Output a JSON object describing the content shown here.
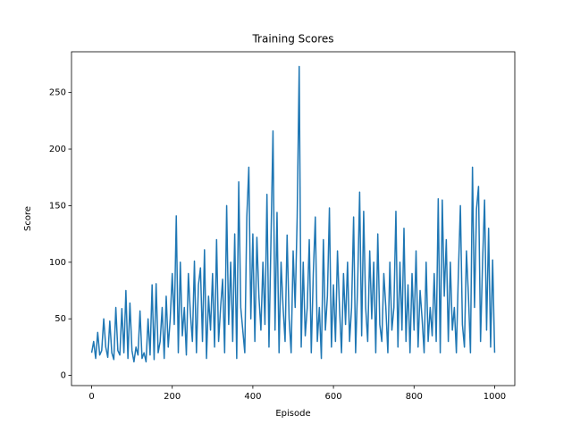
{
  "chart_data": {
    "type": "line",
    "title": "Training Scores",
    "x_label": "Episode",
    "y_label": "Score",
    "xlim": [
      -50,
      1050
    ],
    "ylim": [
      -9,
      286
    ],
    "xticks": [
      0,
      200,
      400,
      600,
      800,
      1000
    ],
    "yticks": [
      0,
      50,
      100,
      150,
      200,
      250
    ],
    "x": [
      0,
      5,
      10,
      15,
      20,
      25,
      30,
      35,
      40,
      45,
      50,
      55,
      60,
      65,
      70,
      75,
      80,
      85,
      90,
      95,
      100,
      105,
      110,
      115,
      120,
      125,
      130,
      135,
      140,
      145,
      150,
      155,
      160,
      165,
      170,
      175,
      180,
      185,
      190,
      195,
      200,
      205,
      210,
      215,
      220,
      225,
      230,
      235,
      240,
      245,
      250,
      255,
      260,
      265,
      270,
      275,
      280,
      285,
      290,
      295,
      300,
      305,
      310,
      315,
      320,
      325,
      330,
      335,
      340,
      345,
      350,
      355,
      360,
      365,
      370,
      375,
      380,
      385,
      390,
      395,
      400,
      405,
      410,
      415,
      420,
      425,
      430,
      435,
      440,
      445,
      450,
      455,
      460,
      465,
      470,
      475,
      480,
      485,
      490,
      495,
      500,
      505,
      510,
      515,
      520,
      525,
      530,
      535,
      540,
      545,
      550,
      555,
      560,
      565,
      570,
      575,
      580,
      585,
      590,
      595,
      600,
      605,
      610,
      615,
      620,
      625,
      630,
      635,
      640,
      645,
      650,
      655,
      660,
      665,
      670,
      675,
      680,
      685,
      690,
      695,
      700,
      705,
      710,
      715,
      720,
      725,
      730,
      735,
      740,
      745,
      750,
      755,
      760,
      765,
      770,
      775,
      780,
      785,
      790,
      795,
      800,
      805,
      810,
      815,
      820,
      825,
      830,
      835,
      840,
      845,
      850,
      855,
      860,
      865,
      870,
      875,
      880,
      885,
      890,
      895,
      900,
      905,
      910,
      915,
      920,
      925,
      930,
      935,
      940,
      945,
      950,
      955,
      960,
      965,
      970,
      975,
      980,
      985,
      990,
      995,
      1000
    ],
    "series": [
      {
        "color": "#1f77b4",
        "values": [
          20,
          30,
          15,
          38,
          18,
          22,
          50,
          25,
          16,
          48,
          20,
          14,
          60,
          22,
          18,
          59,
          20,
          75,
          15,
          64,
          22,
          12,
          25,
          18,
          57,
          15,
          20,
          12,
          50,
          18,
          80,
          14,
          81,
          20,
          30,
          60,
          15,
          70,
          25,
          50,
          90,
          45,
          141,
          20,
          100,
          35,
          60,
          18,
          90,
          55,
          30,
          101,
          20,
          80,
          95,
          30,
          111,
          15,
          70,
          40,
          90,
          25,
          120,
          30,
          60,
          85,
          20,
          150,
          45,
          100,
          30,
          125,
          15,
          171,
          60,
          40,
          20,
          140,
          184,
          50,
          125,
          30,
          122,
          70,
          40,
          100,
          45,
          160,
          25,
          120,
          216,
          40,
          144,
          20,
          100,
          60,
          30,
          124,
          50,
          20,
          110,
          60,
          140,
          273,
          25,
          100,
          35,
          60,
          120,
          20,
          90,
          140,
          30,
          60,
          15,
          120,
          40,
          70,
          148,
          25,
          80,
          30,
          110,
          60,
          20,
          90,
          45,
          100,
          30,
          60,
          140,
          20,
          80,
          162,
          35,
          145,
          60,
          30,
          110,
          50,
          100,
          20,
          125,
          45,
          30,
          90,
          60,
          20,
          100,
          40,
          60,
          145,
          25,
          100,
          40,
          130,
          30,
          80,
          20,
          90,
          40,
          110,
          25,
          75,
          50,
          20,
          100,
          30,
          60,
          35,
          90,
          30,
          156,
          20,
          155,
          70,
          120,
          30,
          100,
          40,
          60,
          20,
          90,
          150,
          45,
          25,
          110,
          70,
          20,
          184,
          60,
          147,
          167,
          30,
          100,
          155,
          40,
          130,
          25,
          102,
          20
        ]
      }
    ]
  }
}
